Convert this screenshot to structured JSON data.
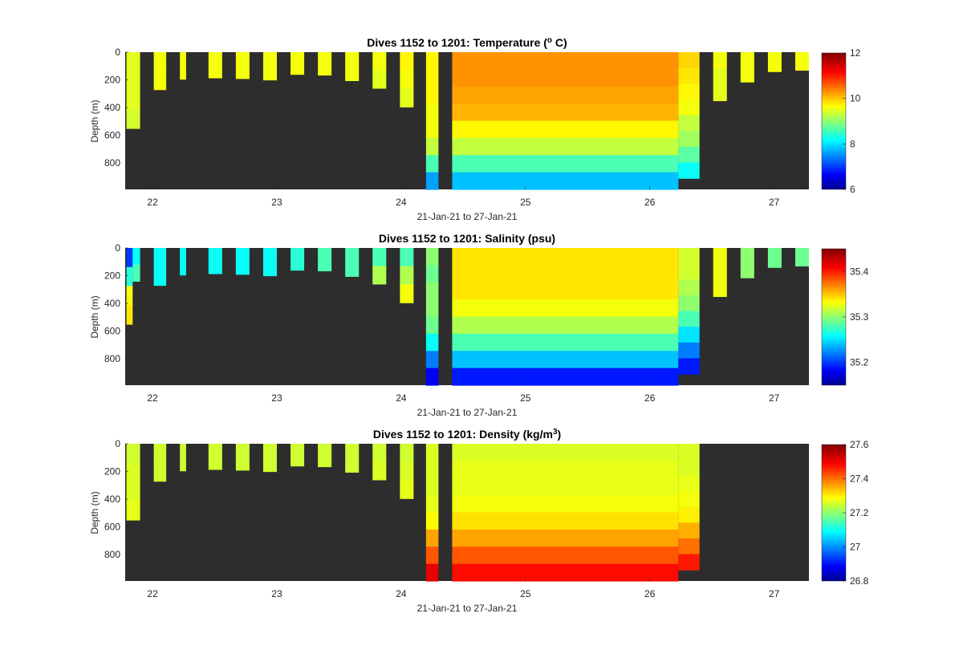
{
  "chart_data": [
    {
      "type": "heatmap",
      "title_main": "Dives 1152 to 1201: Temperature (",
      "title_sup": "o",
      "title_end": " C)",
      "xlabel": "21-Jan-21 to 27-Jan-21",
      "ylabel": "Depth (m)",
      "xticks": [
        "22",
        "23",
        "24",
        "25",
        "26",
        "27"
      ],
      "yticks": [
        "0",
        "200",
        "400",
        "600",
        "800"
      ],
      "xlim": [
        21.78,
        27.28
      ],
      "ylim": [
        0,
        990
      ],
      "colorbar": {
        "ticks": [
          "6",
          "8",
          "10",
          "12"
        ],
        "range": [
          6,
          12
        ]
      },
      "columns": [
        {
          "t0": 21.79,
          "t1": 21.9,
          "max_depth": 550,
          "values": [
            9.5,
            9.5,
            9.5,
            9.4
          ]
        },
        {
          "t0": 22.01,
          "t1": 22.11,
          "max_depth": 270,
          "values": [
            9.6,
            9.6
          ]
        },
        {
          "t0": 22.22,
          "t1": 22.27,
          "max_depth": 195,
          "values": [
            9.6
          ]
        },
        {
          "t0": 22.45,
          "t1": 22.56,
          "max_depth": 185,
          "values": [
            9.6
          ]
        },
        {
          "t0": 22.67,
          "t1": 22.78,
          "max_depth": 190,
          "values": [
            9.6
          ]
        },
        {
          "t0": 22.89,
          "t1": 23.0,
          "max_depth": 200,
          "values": [
            9.6
          ]
        },
        {
          "t0": 23.11,
          "t1": 23.22,
          "max_depth": 160,
          "values": [
            9.6
          ]
        },
        {
          "t0": 23.33,
          "t1": 23.44,
          "max_depth": 165,
          "values": [
            9.6
          ]
        },
        {
          "t0": 23.55,
          "t1": 23.66,
          "max_depth": 205,
          "values": [
            9.6
          ]
        },
        {
          "t0": 23.77,
          "t1": 23.88,
          "max_depth": 260,
          "values": [
            9.6,
            9.5
          ]
        },
        {
          "t0": 23.99,
          "t1": 24.1,
          "max_depth": 395,
          "values": [
            9.7,
            9.6,
            9.5
          ]
        },
        {
          "t0": 24.2,
          "t1": 24.3,
          "max_depth": 990,
          "values": [
            9.7,
            9.7,
            9.7,
            9.6,
            9.6,
            9.3,
            8.6,
            7.6
          ]
        },
        {
          "t0": 24.41,
          "t1": 26.23,
          "max_depth": 990,
          "values": [
            10.3,
            10.3,
            10.2,
            10.1,
            9.7,
            9.3,
            8.6,
            7.8
          ]
        },
        {
          "t0": 26.23,
          "t1": 26.4,
          "max_depth": 910,
          "values": [
            9.9,
            9.8,
            9.7,
            9.6,
            9.3,
            9.1,
            8.7,
            8.2
          ]
        },
        {
          "t0": 26.51,
          "t1": 26.62,
          "max_depth": 350,
          "values": [
            9.6,
            9.5,
            9.5
          ]
        },
        {
          "t0": 26.73,
          "t1": 26.84,
          "max_depth": 215,
          "values": [
            9.6
          ]
        },
        {
          "t0": 26.95,
          "t1": 27.06,
          "max_depth": 140,
          "values": [
            9.6
          ]
        },
        {
          "t0": 27.17,
          "t1": 27.28,
          "max_depth": 130,
          "values": [
            9.6
          ]
        }
      ]
    },
    {
      "type": "heatmap",
      "title_main": "Dives 1152 to 1201: Salinity (psu)",
      "title_sup": "",
      "title_end": "",
      "xlabel": "21-Jan-21 to 27-Jan-21",
      "ylabel": "Depth (m)",
      "xticks": [
        "22",
        "23",
        "24",
        "25",
        "26",
        "27"
      ],
      "yticks": [
        "0",
        "200",
        "400",
        "600",
        "800"
      ],
      "xlim": [
        21.78,
        27.28
      ],
      "ylim": [
        0,
        990
      ],
      "colorbar": {
        "ticks": [
          "35.2",
          "35.3",
          "35.4"
        ],
        "range": [
          35.15,
          35.45
        ]
      },
      "columns": [
        {
          "t0": 21.79,
          "t1": 21.84,
          "max_depth": 550,
          "values": [
            35.2,
            35.27,
            35.33,
            35.34
          ]
        },
        {
          "t0": 21.84,
          "t1": 21.9,
          "max_depth": 240,
          "values": [
            35.26,
            35.28
          ]
        },
        {
          "t0": 22.01,
          "t1": 22.11,
          "max_depth": 270,
          "values": [
            35.26,
            35.26
          ]
        },
        {
          "t0": 22.22,
          "t1": 22.27,
          "max_depth": 195,
          "values": [
            35.26
          ]
        },
        {
          "t0": 22.45,
          "t1": 22.56,
          "max_depth": 185,
          "values": [
            35.26
          ]
        },
        {
          "t0": 22.67,
          "t1": 22.78,
          "max_depth": 190,
          "values": [
            35.26
          ]
        },
        {
          "t0": 22.89,
          "t1": 23.0,
          "max_depth": 200,
          "values": [
            35.26
          ]
        },
        {
          "t0": 23.11,
          "t1": 23.22,
          "max_depth": 160,
          "values": [
            35.27
          ]
        },
        {
          "t0": 23.33,
          "t1": 23.44,
          "max_depth": 165,
          "values": [
            35.28
          ]
        },
        {
          "t0": 23.55,
          "t1": 23.66,
          "max_depth": 205,
          "values": [
            35.28
          ]
        },
        {
          "t0": 23.77,
          "t1": 23.88,
          "max_depth": 260,
          "values": [
            35.28,
            35.31
          ]
        },
        {
          "t0": 23.99,
          "t1": 24.1,
          "max_depth": 395,
          "values": [
            35.28,
            35.31,
            35.33
          ]
        },
        {
          "t0": 24.2,
          "t1": 24.3,
          "max_depth": 990,
          "values": [
            35.3,
            35.29,
            35.3,
            35.3,
            35.29,
            35.26,
            35.22,
            35.18
          ]
        },
        {
          "t0": 24.41,
          "t1": 26.23,
          "max_depth": 990,
          "values": [
            35.34,
            35.34,
            35.34,
            35.33,
            35.31,
            35.28,
            35.24,
            35.19
          ]
        },
        {
          "t0": 26.23,
          "t1": 26.4,
          "max_depth": 910,
          "values": [
            35.32,
            35.32,
            35.31,
            35.3,
            35.28,
            35.25,
            35.22,
            35.19
          ]
        },
        {
          "t0": 26.51,
          "t1": 26.62,
          "max_depth": 350,
          "values": [
            35.33,
            35.33,
            35.33
          ]
        },
        {
          "t0": 26.73,
          "t1": 26.84,
          "max_depth": 215,
          "values": [
            35.3
          ]
        },
        {
          "t0": 26.95,
          "t1": 27.06,
          "max_depth": 140,
          "values": [
            35.29
          ]
        },
        {
          "t0": 27.17,
          "t1": 27.28,
          "max_depth": 130,
          "values": [
            35.29
          ]
        }
      ]
    },
    {
      "type": "heatmap",
      "title_main": "Dives 1152 to 1201: Density (kg/m",
      "title_sup": "3",
      "title_end": ")",
      "xlabel": "21-Jan-21 to 27-Jan-21",
      "ylabel": "Depth (m)",
      "xticks": [
        "22",
        "23",
        "24",
        "25",
        "26",
        "27"
      ],
      "yticks": [
        "0",
        "200",
        "400",
        "600",
        "800"
      ],
      "xlim": [
        21.78,
        27.28
      ],
      "ylim": [
        0,
        990
      ],
      "colorbar": {
        "ticks": [
          "26.8",
          "27",
          "27.2",
          "27.4",
          "27.6"
        ],
        "range": [
          26.8,
          27.6
        ]
      },
      "columns": [
        {
          "t0": 21.79,
          "t1": 21.9,
          "max_depth": 550,
          "values": [
            27.25,
            27.26,
            27.26,
            27.27
          ]
        },
        {
          "t0": 22.01,
          "t1": 22.11,
          "max_depth": 270,
          "values": [
            27.25,
            27.25
          ]
        },
        {
          "t0": 22.22,
          "t1": 22.27,
          "max_depth": 195,
          "values": [
            27.25
          ]
        },
        {
          "t0": 22.45,
          "t1": 22.56,
          "max_depth": 185,
          "values": [
            27.25
          ]
        },
        {
          "t0": 22.67,
          "t1": 22.78,
          "max_depth": 190,
          "values": [
            27.25
          ]
        },
        {
          "t0": 22.89,
          "t1": 23.0,
          "max_depth": 200,
          "values": [
            27.25
          ]
        },
        {
          "t0": 23.11,
          "t1": 23.22,
          "max_depth": 160,
          "values": [
            27.25
          ]
        },
        {
          "t0": 23.33,
          "t1": 23.44,
          "max_depth": 165,
          "values": [
            27.25
          ]
        },
        {
          "t0": 23.55,
          "t1": 23.66,
          "max_depth": 205,
          "values": [
            27.25
          ]
        },
        {
          "t0": 23.77,
          "t1": 23.88,
          "max_depth": 260,
          "values": [
            27.25,
            27.26
          ]
        },
        {
          "t0": 23.99,
          "t1": 24.1,
          "max_depth": 395,
          "values": [
            27.25,
            27.26,
            27.27
          ]
        },
        {
          "t0": 24.2,
          "t1": 24.3,
          "max_depth": 990,
          "values": [
            27.26,
            27.26,
            27.26,
            27.27,
            27.29,
            27.36,
            27.42,
            27.51
          ]
        },
        {
          "t0": 24.41,
          "t1": 26.23,
          "max_depth": 990,
          "values": [
            27.26,
            27.27,
            27.27,
            27.28,
            27.31,
            27.36,
            27.42,
            27.48
          ]
        },
        {
          "t0": 26.23,
          "t1": 26.4,
          "max_depth": 910,
          "values": [
            27.26,
            27.26,
            27.27,
            27.28,
            27.3,
            27.35,
            27.4,
            27.47
          ]
        }
      ]
    }
  ]
}
